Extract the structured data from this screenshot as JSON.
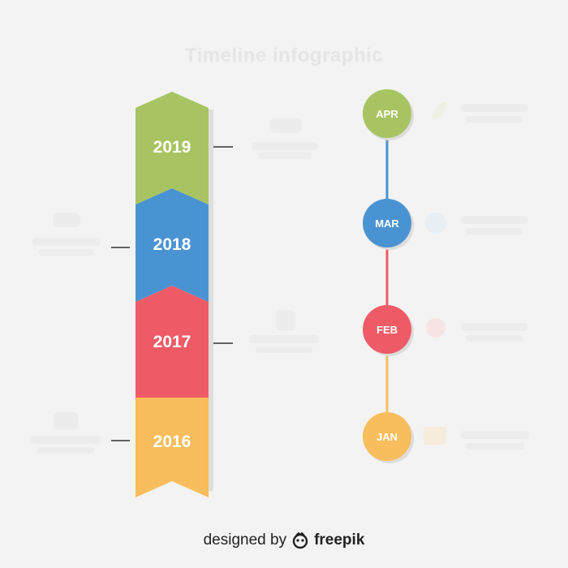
{
  "title": "Timeline infographic",
  "footer": {
    "prefix": "designed by",
    "brand": "freepik",
    "logo_icon": "freepik-logo-icon"
  },
  "years": [
    {
      "label": "2019",
      "color": "#a8c462"
    },
    {
      "label": "2018",
      "color": "#4a93d2"
    },
    {
      "label": "2017",
      "color": "#ee5b66"
    },
    {
      "label": "2016",
      "color": "#f8bd5c"
    }
  ],
  "months": [
    {
      "label": "APR",
      "color": "#a8c462",
      "icon": "leaf-icon"
    },
    {
      "label": "MAR",
      "color": "#4a93d2",
      "icon": "globe-icon"
    },
    {
      "label": "FEB",
      "color": "#ee5b66",
      "icon": "target-icon"
    },
    {
      "label": "JAN",
      "color": "#f8bd5c",
      "icon": "presentation-icon"
    }
  ],
  "connector_colors": [
    "#4a93d2",
    "#ee5b66",
    "#f8bd5c"
  ]
}
